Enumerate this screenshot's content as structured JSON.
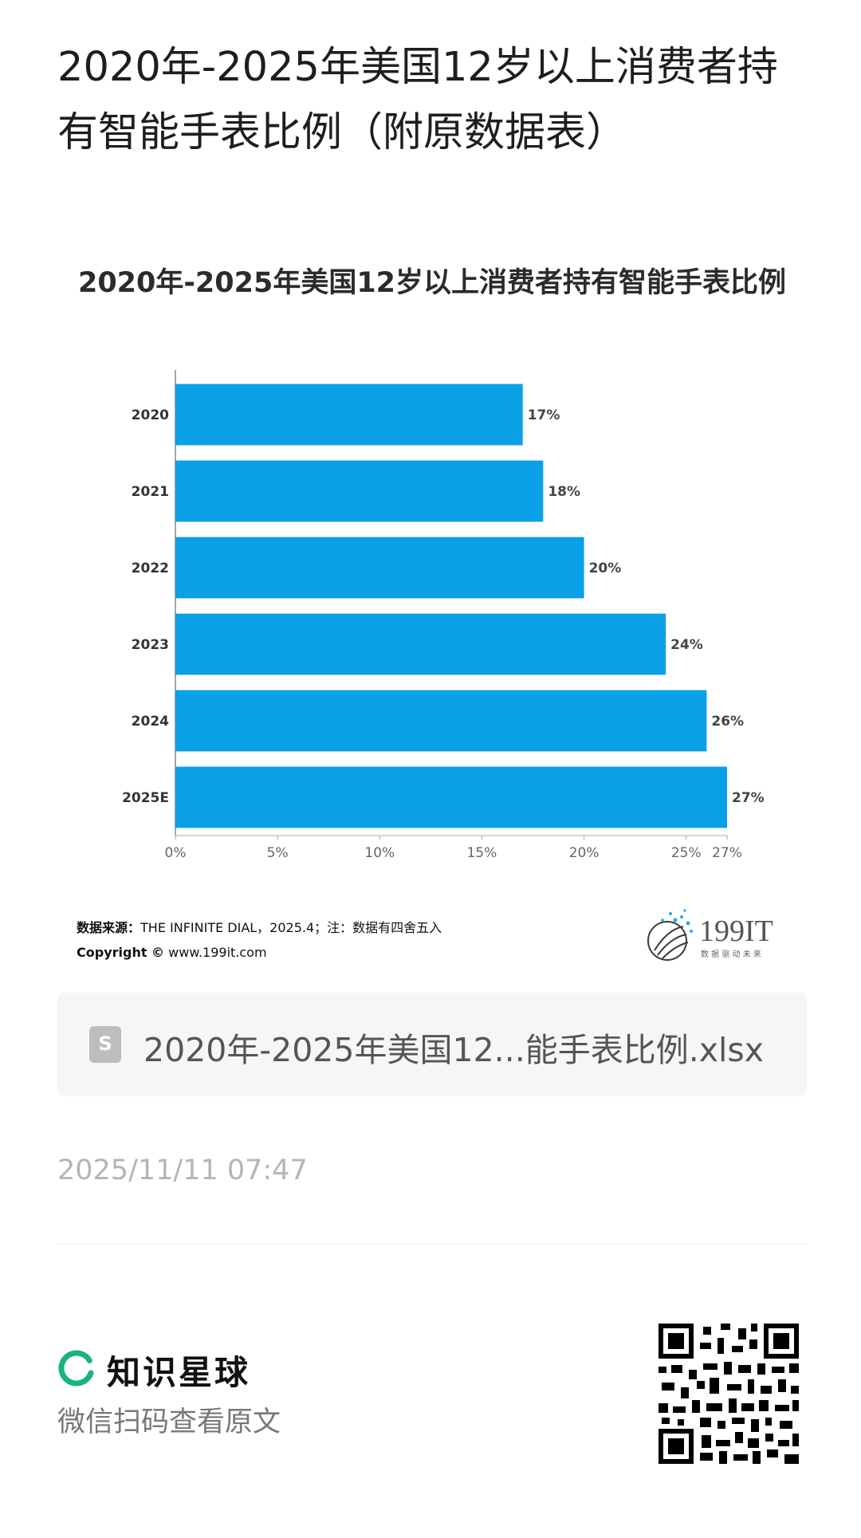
{
  "article": {
    "title": "2020年-2025年美国12岁以上消费者持有智能手表比例（附原数据表）",
    "timestamp": "2025/11/11 07:47"
  },
  "chart_data": {
    "type": "bar",
    "orientation": "horizontal",
    "title": "2020年-2025年美国12岁以上消费者持有智能手表比例",
    "categories": [
      "2020",
      "2021",
      "2022",
      "2023",
      "2024",
      "2025E"
    ],
    "values": [
      17,
      18,
      20,
      24,
      26,
      27
    ],
    "value_labels": [
      "17%",
      "18%",
      "20%",
      "24%",
      "26%",
      "27%"
    ],
    "x_ticks": [
      "0%",
      "5%",
      "10%",
      "15%",
      "20%",
      "25%",
      "27%"
    ],
    "x_tick_values": [
      0,
      5,
      10,
      15,
      20,
      25,
      27
    ],
    "xlim": [
      0,
      27
    ],
    "xlabel": "",
    "ylabel": "",
    "grid": false,
    "bar_color": "#0aa0e6"
  },
  "chart_footer": {
    "source_label": "数据来源：",
    "source_text": "THE INFINITE DIAL，2025.4；注：数据有四舍五入",
    "copyright_label": "Copyright ©",
    "copyright_url": "www.199it.com"
  },
  "logo": {
    "name": "199IT",
    "tagline": "数 据 驱 动 未 来"
  },
  "attachment": {
    "icon": "spreadsheet-file-icon",
    "icon_letter": "S",
    "file_name": "2020年-2025年美国12...能手表比例.xlsx"
  },
  "footer": {
    "brand_name": "知识星球",
    "brand_icon": "circle-logo-icon",
    "brand_color": "#19b47a",
    "scan_hint": "微信扫码查看原文"
  }
}
